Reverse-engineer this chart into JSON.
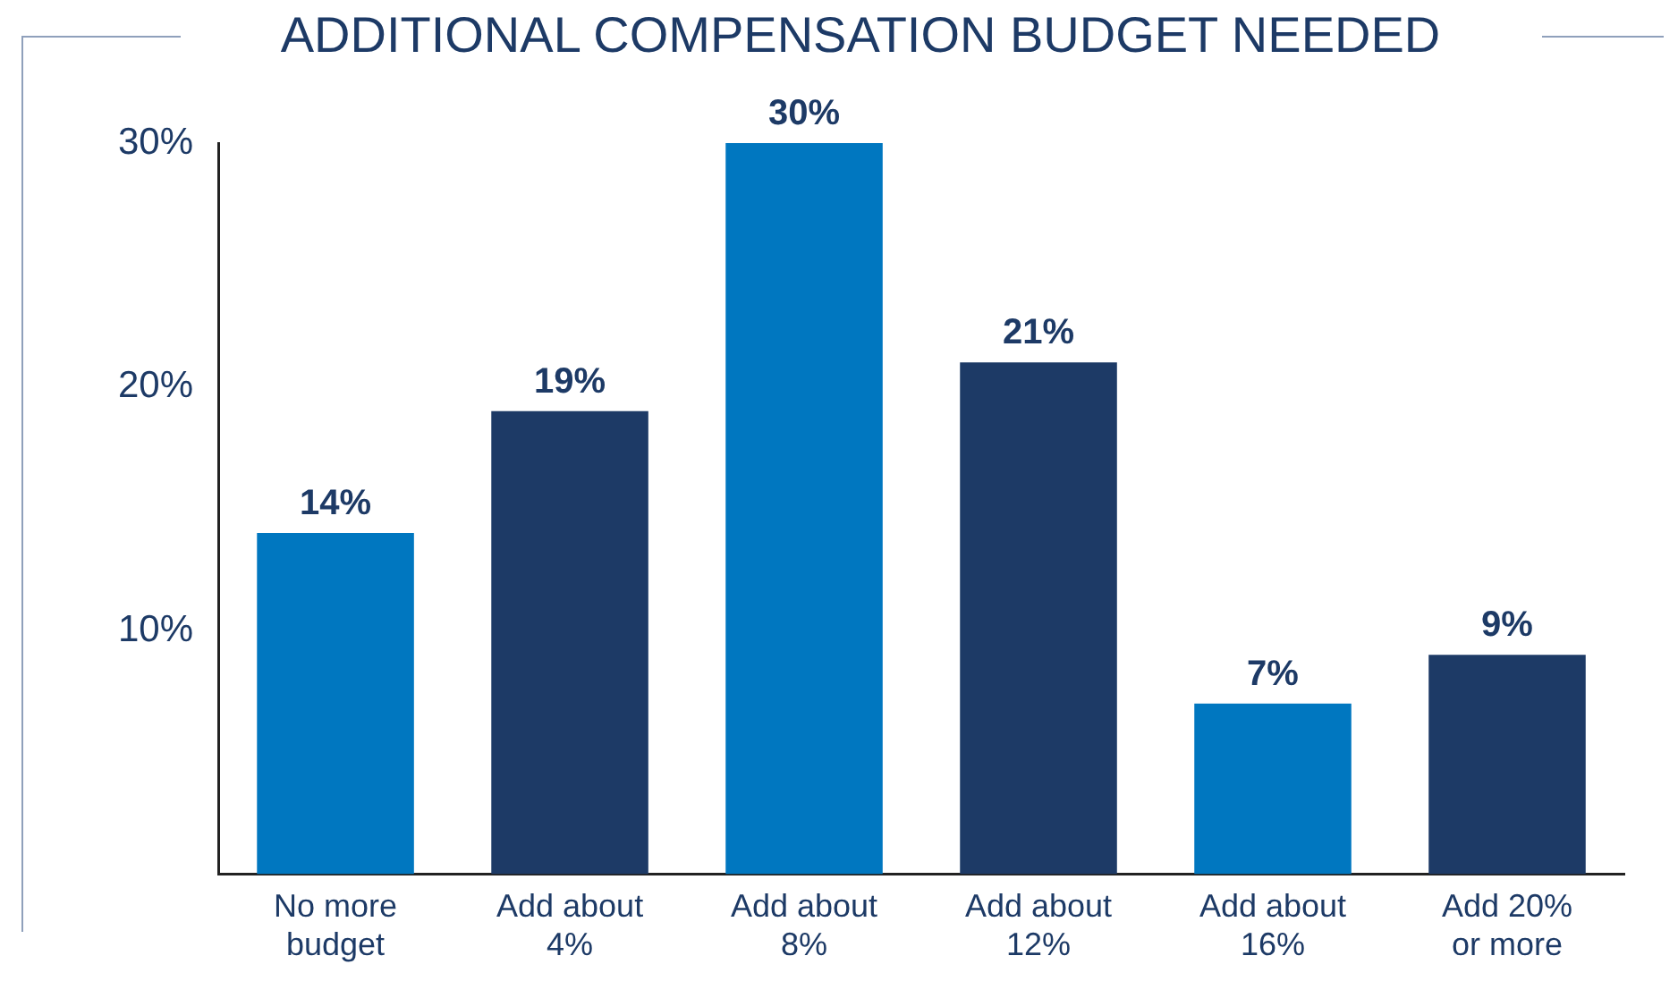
{
  "chart_data": {
    "type": "bar",
    "title": "ADDITIONAL COMPENSATION BUDGET NEEDED",
    "categories": [
      "No more budget",
      "Add about 4%",
      "Add about 8%",
      "Add about 12%",
      "Add about 16%",
      "Add 20% or more"
    ],
    "values": [
      14,
      19,
      30,
      21,
      7,
      9
    ],
    "colors": [
      "#0077c0",
      "#1d3a66",
      "#0077c0",
      "#1d3a66",
      "#0077c0",
      "#1d3a66"
    ],
    "value_labels": [
      "14%",
      "19%",
      "30%",
      "21%",
      "7%",
      "9%"
    ],
    "ylim": [
      0,
      30
    ],
    "yticks": [
      {
        "value": 0,
        "label": null
      },
      {
        "value": 10,
        "label": "10%"
      },
      {
        "value": 20,
        "label": "20%"
      },
      {
        "value": 30,
        "label": "30%"
      }
    ],
    "grid": false,
    "legend": false
  }
}
